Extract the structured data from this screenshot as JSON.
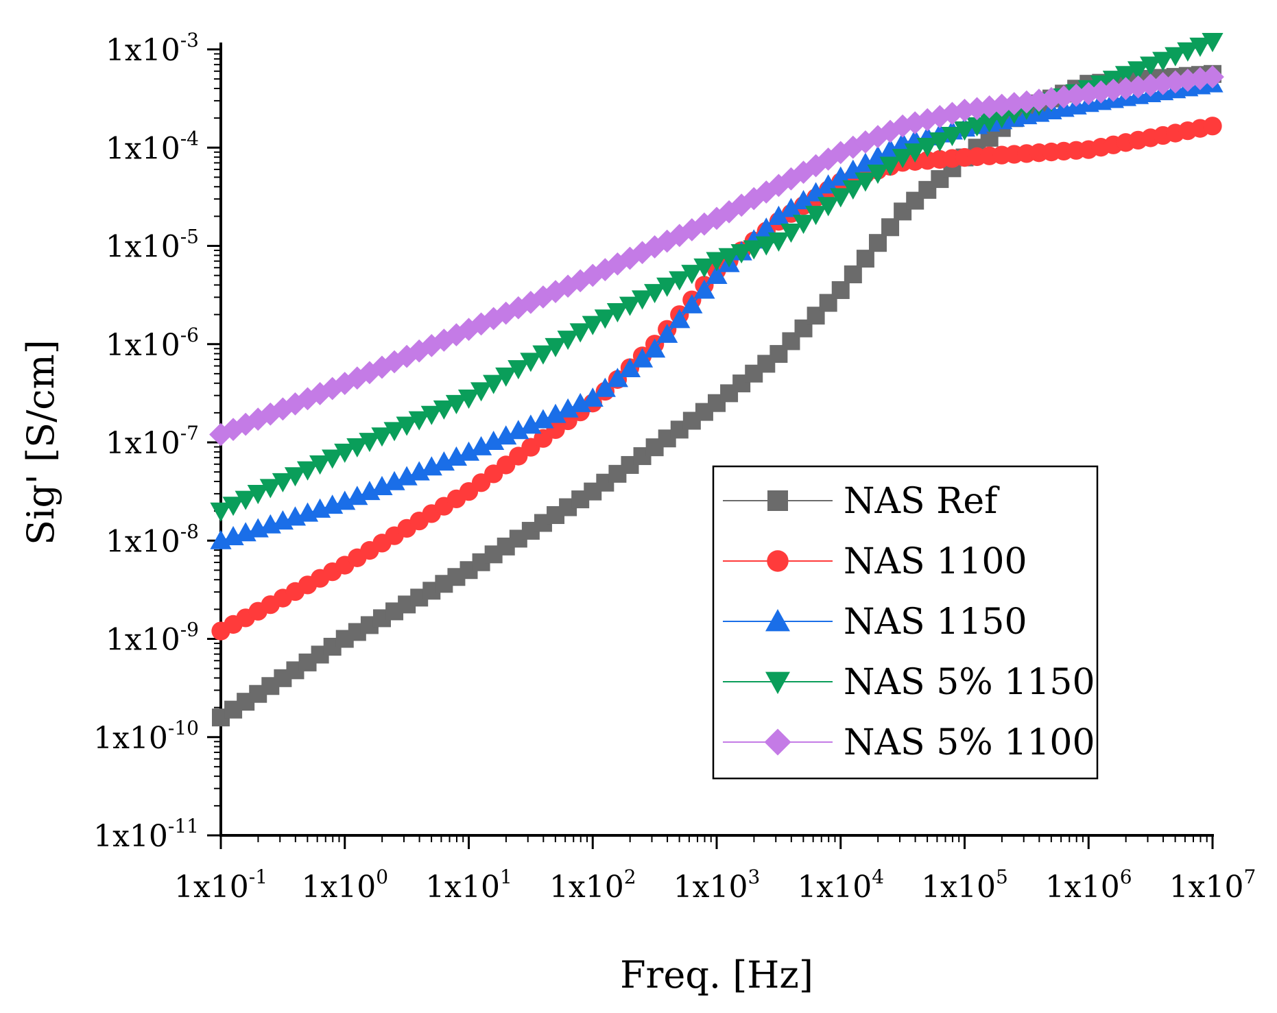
{
  "chart_data": {
    "type": "scatter",
    "title": "",
    "xlabel": "Freq. [Hz]",
    "ylabel": "Sig' [S/cm]",
    "x_scale": "log",
    "y_scale": "log",
    "xlim_log10": [
      -1,
      7
    ],
    "ylim_log10": [
      -11,
      -3
    ],
    "x_ticks": [
      {
        "base": "1x10",
        "exp": "-1"
      },
      {
        "base": "1x10",
        "exp": "0"
      },
      {
        "base": "1x10",
        "exp": "1"
      },
      {
        "base": "1x10",
        "exp": "2"
      },
      {
        "base": "1x10",
        "exp": "3"
      },
      {
        "base": "1x10",
        "exp": "4"
      },
      {
        "base": "1x10",
        "exp": "5"
      },
      {
        "base": "1x10",
        "exp": "6"
      },
      {
        "base": "1x10",
        "exp": "7"
      }
    ],
    "y_ticks": [
      {
        "base": "1x10",
        "exp": "-11"
      },
      {
        "base": "1x10",
        "exp": "-10"
      },
      {
        "base": "1x10",
        "exp": "-9"
      },
      {
        "base": "1x10",
        "exp": "-8"
      },
      {
        "base": "1x10",
        "exp": "-7"
      },
      {
        "base": "1x10",
        "exp": "-6"
      },
      {
        "base": "1x10",
        "exp": "-5"
      },
      {
        "base": "1x10",
        "exp": "-4"
      },
      {
        "base": "1x10",
        "exp": "-3"
      }
    ],
    "points_per_decade": 10,
    "series": [
      {
        "name": "NAS Ref",
        "marker": "square",
        "color": "#6b6b6b",
        "anchors_log10": [
          [
            -1,
            -9.8
          ],
          [
            0,
            -9.0
          ],
          [
            1,
            -8.3
          ],
          [
            2,
            -7.5
          ],
          [
            3,
            -6.6
          ],
          [
            3.5,
            -6.1
          ],
          [
            4,
            -5.45
          ],
          [
            4.5,
            -4.65
          ],
          [
            5,
            -4.1
          ],
          [
            5.5,
            -3.6
          ],
          [
            6,
            -3.35
          ],
          [
            7,
            -3.25
          ]
        ]
      },
      {
        "name": "NAS 1100",
        "marker": "circle",
        "color": "#ff3b3b",
        "anchors_log10": [
          [
            -1,
            -8.92
          ],
          [
            0,
            -8.25
          ],
          [
            1,
            -7.5
          ],
          [
            2,
            -6.6
          ],
          [
            2.5,
            -6.0
          ],
          [
            3,
            -5.25
          ],
          [
            3.5,
            -4.75
          ],
          [
            4,
            -4.35
          ],
          [
            4.5,
            -4.15
          ],
          [
            5,
            -4.1
          ],
          [
            6,
            -4.02
          ],
          [
            7,
            -3.78
          ]
        ]
      },
      {
        "name": "NAS 1150",
        "marker": "triangle-up",
        "color": "#1a6ee8",
        "anchors_log10": [
          [
            -1,
            -8.0
          ],
          [
            0,
            -7.6
          ],
          [
            1,
            -7.1
          ],
          [
            2,
            -6.55
          ],
          [
            2.5,
            -6.05
          ],
          [
            3,
            -5.3
          ],
          [
            3.5,
            -4.7
          ],
          [
            4,
            -4.3
          ],
          [
            4.5,
            -3.95
          ],
          [
            5,
            -3.8
          ],
          [
            6,
            -3.55
          ],
          [
            7,
            -3.35
          ]
        ]
      },
      {
        "name": "NAS 5% 1150",
        "marker": "triangle-down",
        "color": "#0a9e5a",
        "anchors_log10": [
          [
            -1,
            -7.7
          ],
          [
            0,
            -7.1
          ],
          [
            1,
            -6.55
          ],
          [
            2,
            -5.8
          ],
          [
            3,
            -5.15
          ],
          [
            3.5,
            -4.95
          ],
          [
            4,
            -4.5
          ],
          [
            4.5,
            -4.1
          ],
          [
            5,
            -3.82
          ],
          [
            6,
            -3.4
          ],
          [
            7,
            -2.92
          ]
        ]
      },
      {
        "name": "NAS 5% 1100",
        "marker": "diamond",
        "color": "#c47be6",
        "anchors_log10": [
          [
            -1,
            -6.92
          ],
          [
            0,
            -6.4
          ],
          [
            1,
            -5.85
          ],
          [
            2,
            -5.3
          ],
          [
            3,
            -4.72
          ],
          [
            4,
            -4.05
          ],
          [
            4.5,
            -3.78
          ],
          [
            5,
            -3.62
          ],
          [
            6,
            -3.45
          ],
          [
            7,
            -3.28
          ]
        ]
      }
    ],
    "legend_position": "lower-right",
    "grid": false
  }
}
